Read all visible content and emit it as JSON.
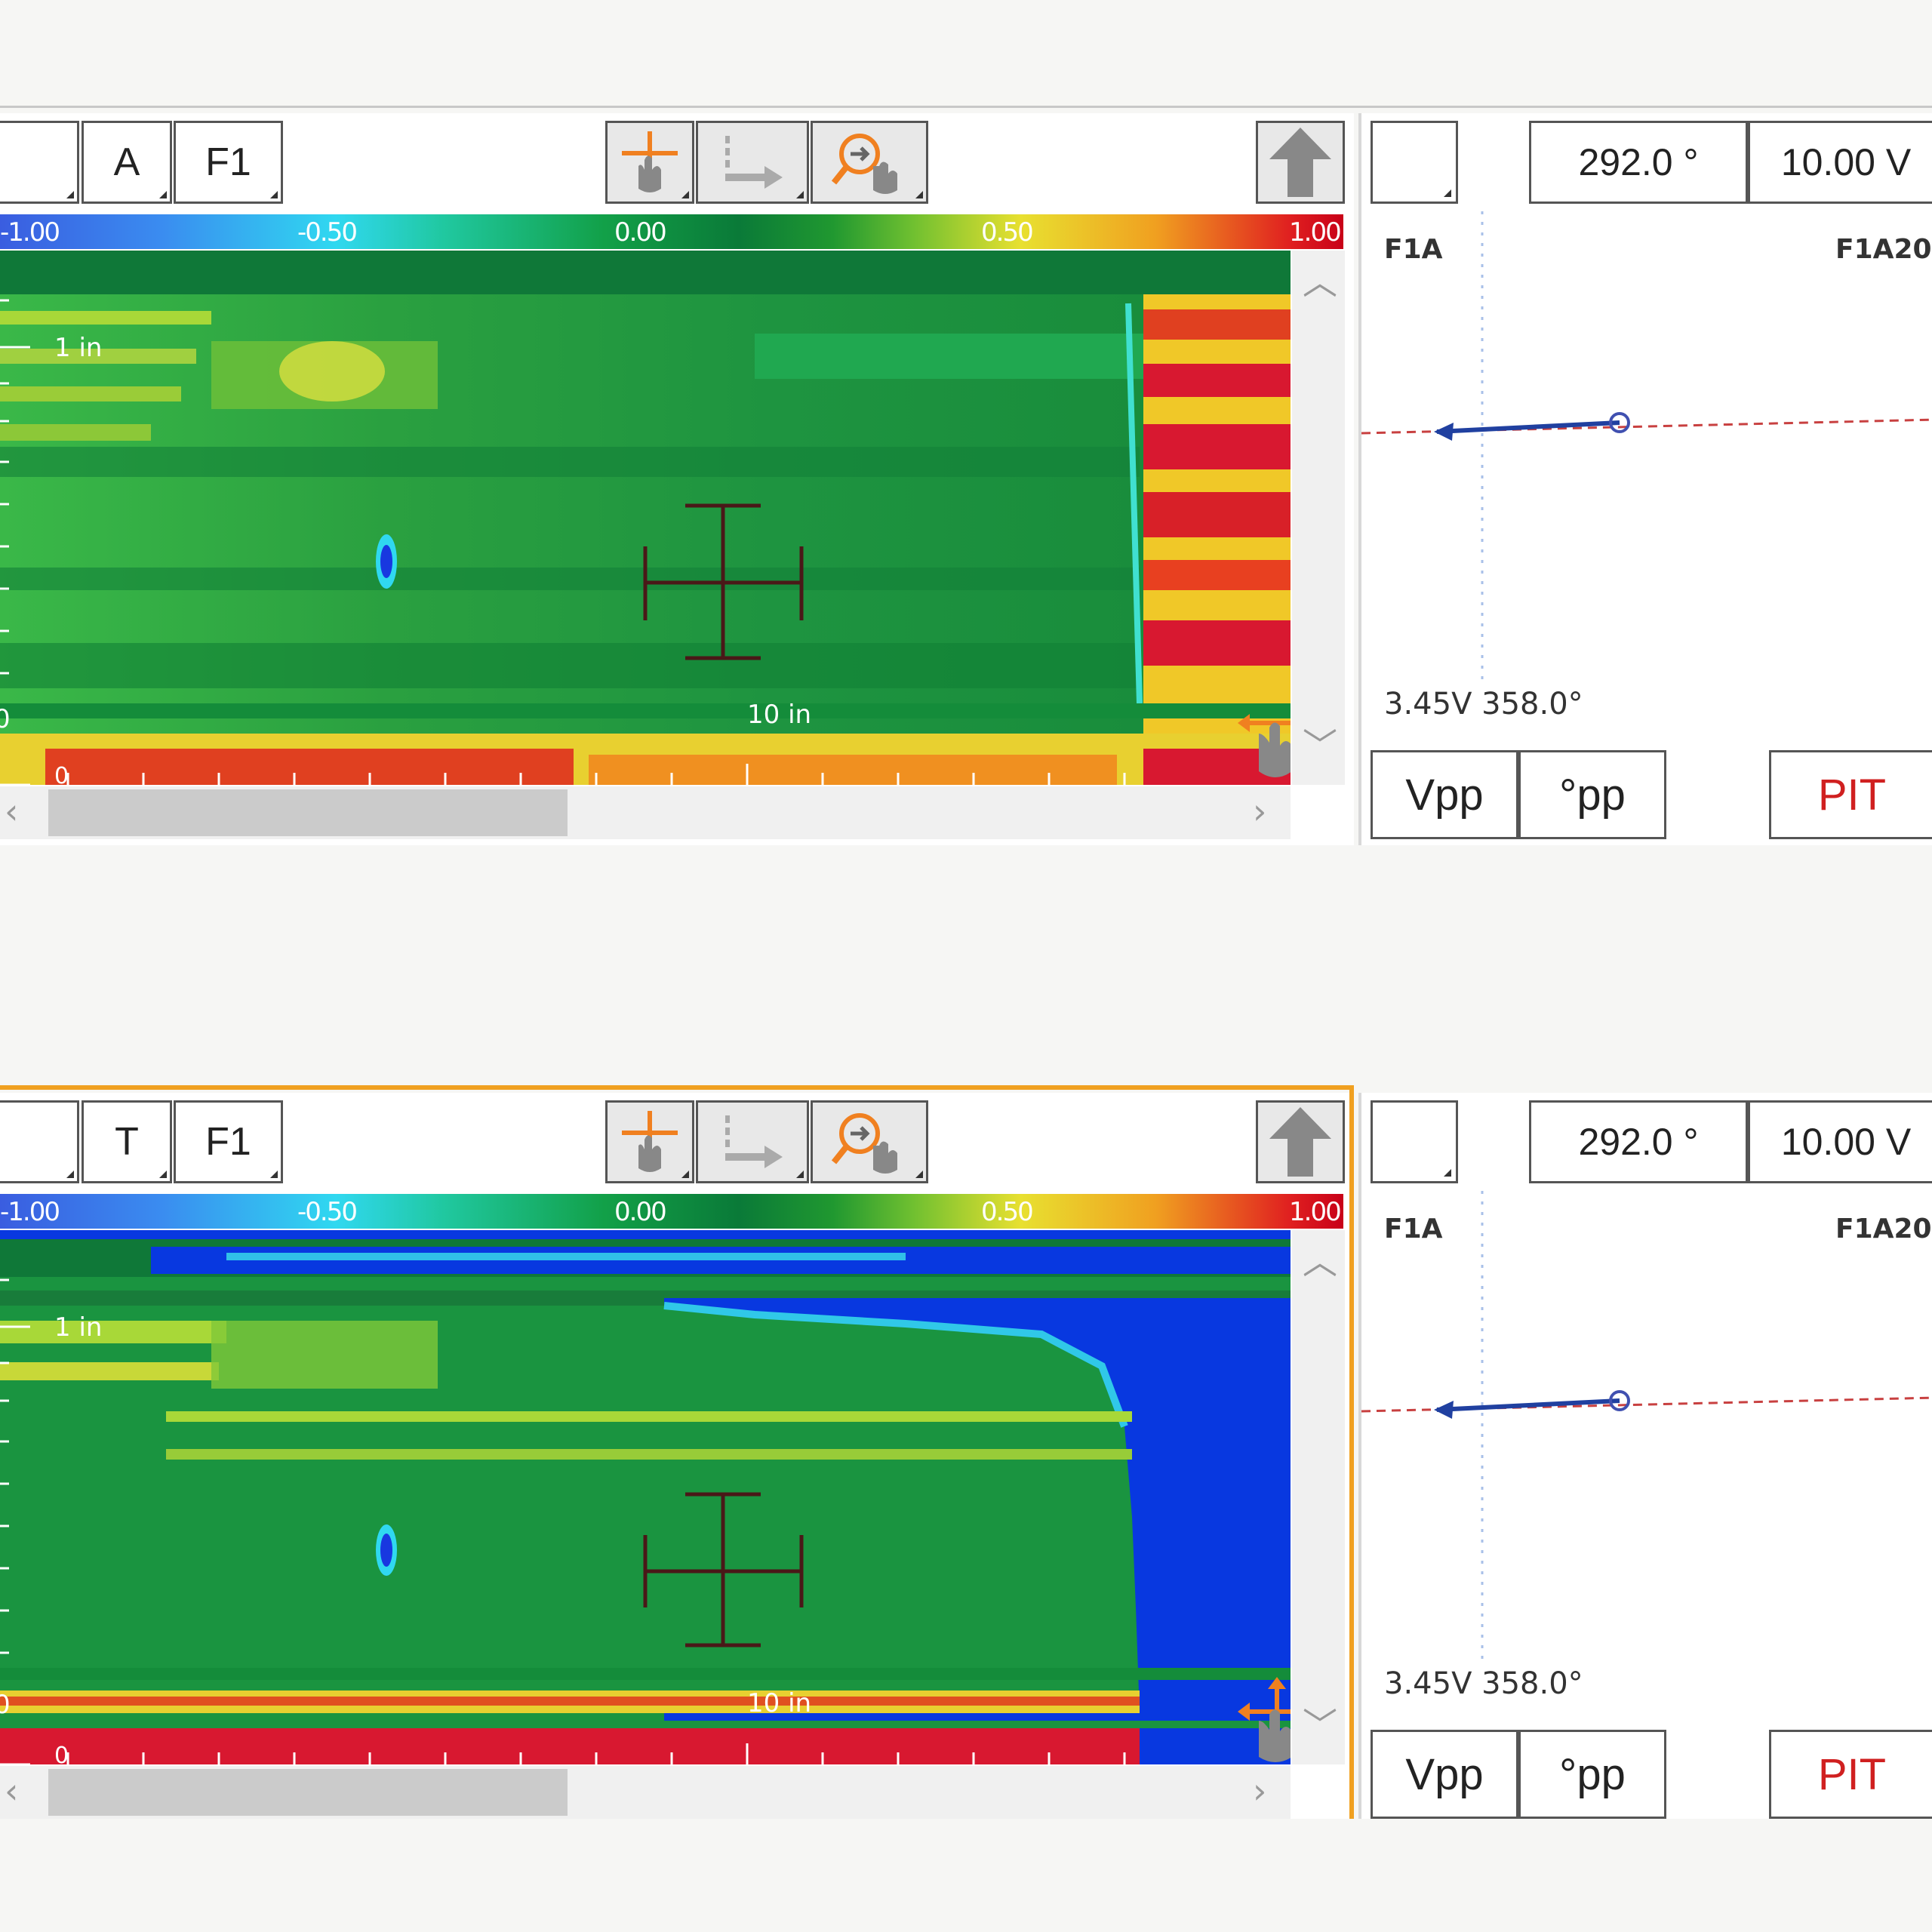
{
  "colorbar": {
    "ticks": [
      "-1.00",
      "-0.50",
      "0.00",
      "0.50",
      "1.00"
    ]
  },
  "panels": [
    {
      "id": "top",
      "channel_mode_label": "A",
      "frequency_label": "F1",
      "depth_label": "1 in",
      "axis_label": "10 in",
      "row_tick_top": "0",
      "row_tick_bottom": "0",
      "rotation_label": "292.0 °",
      "span_label": "10.00 V",
      "right_channel": "F1A",
      "right_channel_alt": "F1A20",
      "readout": "3.45V 358.0°",
      "buttons": [
        "Vpp",
        "°pp",
        "PIT"
      ],
      "highlight": false
    },
    {
      "id": "bottom",
      "channel_mode_label": "T",
      "frequency_label": "F1",
      "depth_label": "1 in",
      "axis_label": "10 in",
      "row_tick_top": "0",
      "row_tick_bottom": "0",
      "rotation_label": "292.0 °",
      "span_label": "10.00 V",
      "right_channel": "F1A",
      "right_channel_alt": "F1A20",
      "readout": "3.45V 358.0°",
      "buttons": [
        "Vpp",
        "°pp",
        "PIT"
      ],
      "highlight": true
    }
  ],
  "icons": {
    "tool1": "pan-cursor-icon",
    "tool2": "axis-arrow-icon",
    "tool3": "zoom-cursor-icon",
    "up": "up-arrow-icon",
    "scroll_up": "chevron-up-icon",
    "scroll_down": "chevron-down-icon",
    "scroll_left": "chevron-left-icon",
    "scroll_right": "chevron-right-icon"
  },
  "colors": {
    "highlight": "#f0a020",
    "pit": "#d02020",
    "dash_line": "#c84040",
    "vector": "#2040a0"
  }
}
